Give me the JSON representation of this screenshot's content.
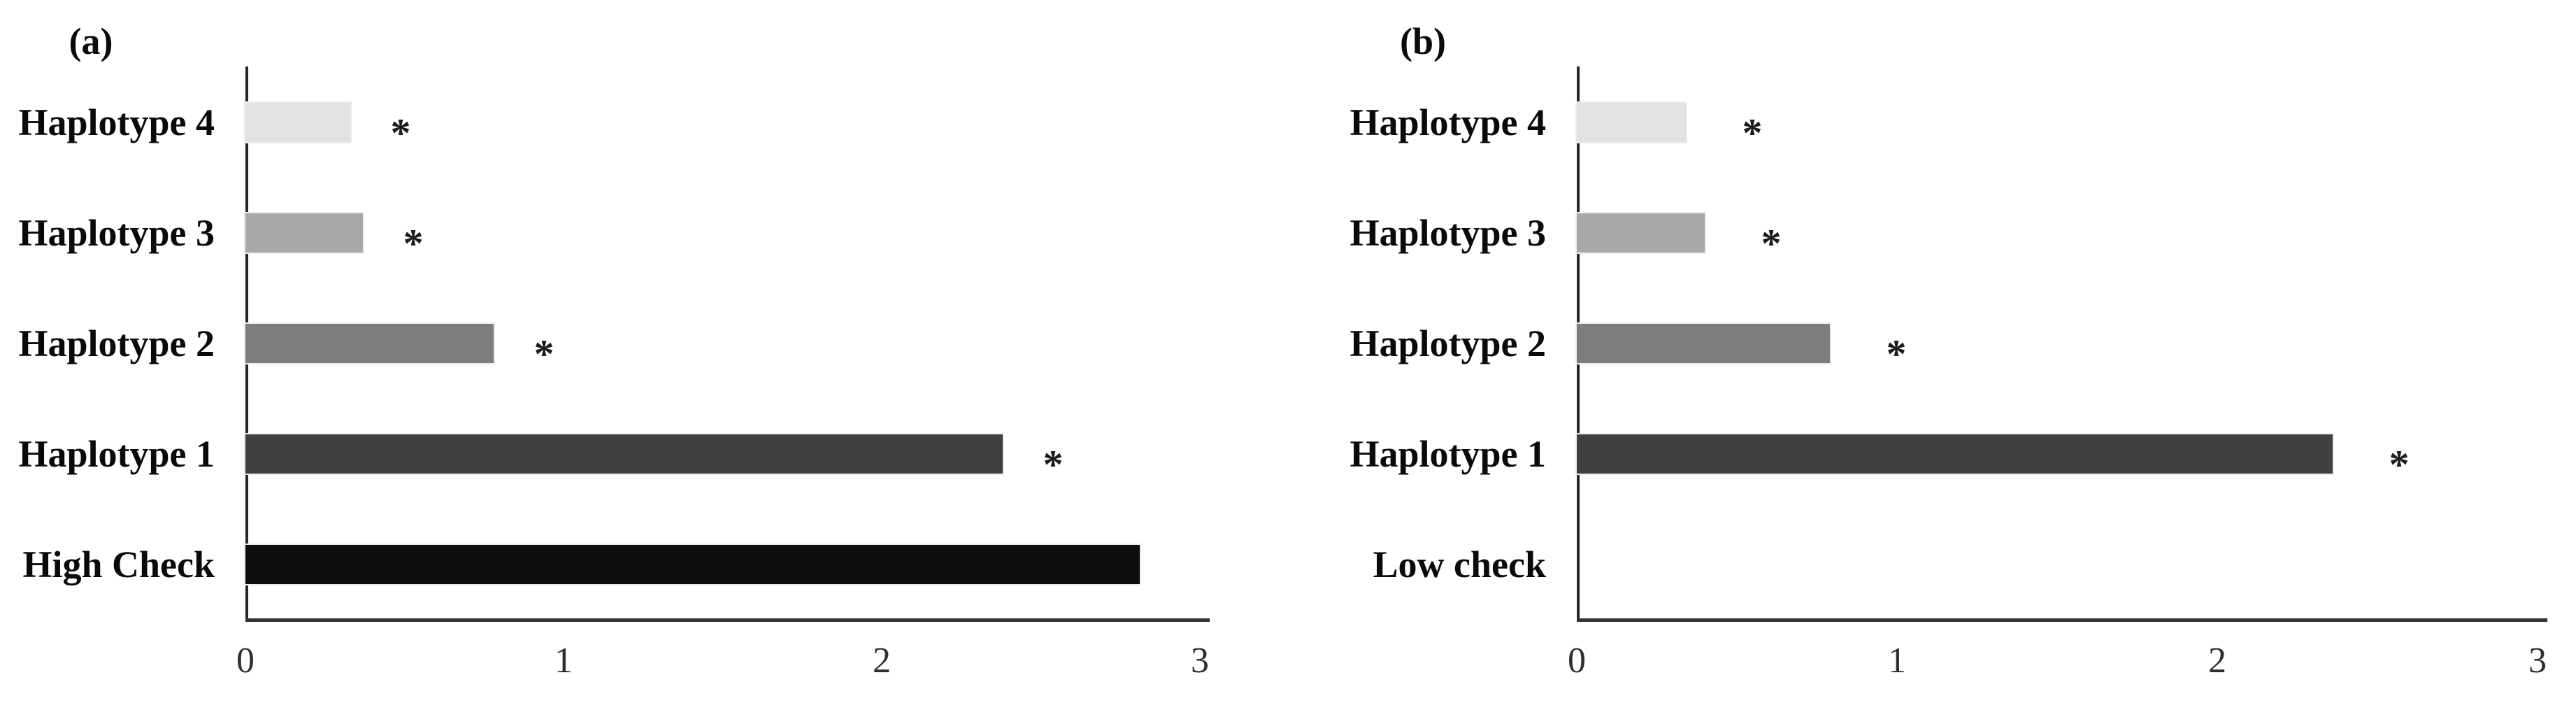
{
  "figure": {
    "background": "#ffffff",
    "significance_marker": "*",
    "axis_color": "#2d2d2d"
  },
  "chart_data": [
    {
      "type": "bar",
      "orientation": "horizontal",
      "panel_label": "(a)",
      "title": "",
      "xlabel": "",
      "ylabel": "",
      "categories": [
        "Haplotype 4",
        "Haplotype 3",
        "Haplotype 2",
        "Haplotype 1",
        "High Check"
      ],
      "values": [
        0.33,
        0.37,
        0.78,
        2.38,
        2.81
      ],
      "significant": [
        true,
        true,
        true,
        true,
        false
      ],
      "bar_colors": [
        "#e2e2e2",
        "#a8a8a8",
        "#7d7d7d",
        "#3f3f3f",
        "#0e0e0e"
      ],
      "xlim": [
        0,
        3
      ],
      "xticks": [
        "0",
        "1",
        "2",
        "3"
      ],
      "grid": false,
      "legend": null
    },
    {
      "type": "bar",
      "orientation": "horizontal",
      "panel_label": "(b)",
      "title": "",
      "xlabel": "",
      "ylabel": "",
      "categories": [
        "Haplotype 4",
        "Haplotype 3",
        "Haplotype 2",
        "Haplotype 1",
        "Low check"
      ],
      "values": [
        0.34,
        0.4,
        0.79,
        2.36,
        0
      ],
      "significant": [
        true,
        true,
        true,
        true,
        false
      ],
      "bar_colors": [
        "#e2e2e2",
        "#a8a8a8",
        "#7d7d7d",
        "#3f3f3f",
        "#0e0e0e"
      ],
      "xlim": [
        0,
        3
      ],
      "xticks": [
        "0",
        "1",
        "2",
        "3"
      ],
      "grid": false,
      "legend": null
    }
  ]
}
